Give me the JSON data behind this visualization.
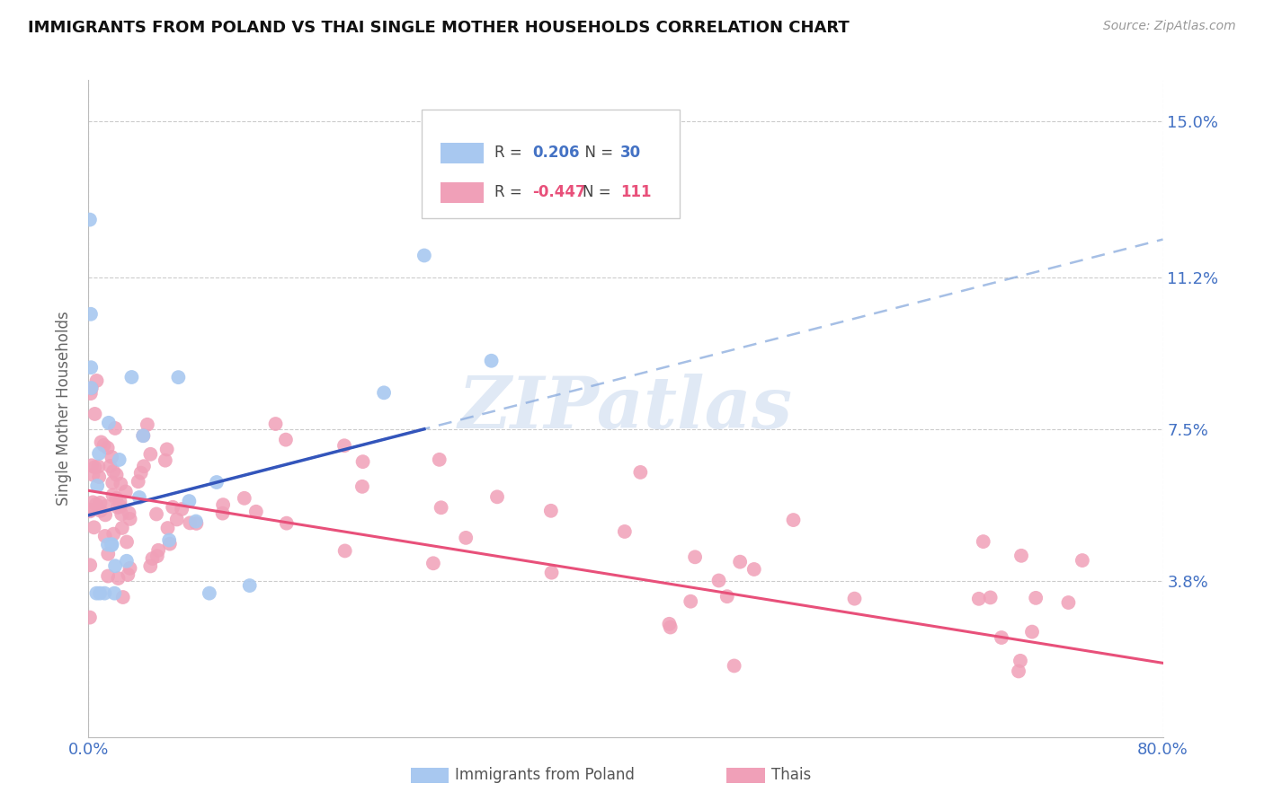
{
  "title": "IMMIGRANTS FROM POLAND VS THAI SINGLE MOTHER HOUSEHOLDS CORRELATION CHART",
  "source": "Source: ZipAtlas.com",
  "ylabel": "Single Mother Households",
  "xlim": [
    0.0,
    0.8
  ],
  "ylim": [
    0.0,
    0.16
  ],
  "yticks": [
    0.038,
    0.075,
    0.112,
    0.15
  ],
  "ytick_labels": [
    "3.8%",
    "7.5%",
    "11.2%",
    "15.0%"
  ],
  "poland_color": "#a8c8f0",
  "thai_color": "#f0a0b8",
  "poland_line_color": "#3355bb",
  "thai_line_color": "#e8507a",
  "poland_dash_color": "#88aadd",
  "grid_color": "#cccccc",
  "tick_label_color": "#4472c4",
  "watermark": "ZIPatlas",
  "R_poland": "0.206",
  "N_poland": "30",
  "R_thai": "-0.447",
  "N_thai": "111",
  "legend_label_poland": "Immigrants from Poland",
  "legend_label_thai": "Thais"
}
